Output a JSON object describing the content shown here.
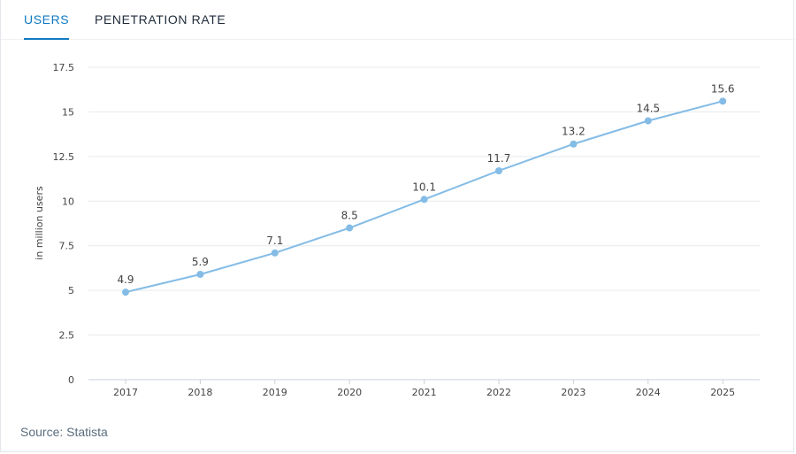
{
  "tabs": [
    {
      "label": "USERS",
      "active": true
    },
    {
      "label": "PENETRATION RATE",
      "active": false
    }
  ],
  "source": "Source: Statista",
  "colors": {
    "accent": "#0f7ac3",
    "series": "#84bce6",
    "grid": "#e6e9ec",
    "text": "#444444"
  },
  "chart_data": {
    "type": "line",
    "title": "",
    "xlabel": "",
    "ylabel": "in million users",
    "x": [
      "2017",
      "2018",
      "2019",
      "2020",
      "2021",
      "2022",
      "2023",
      "2024",
      "2025"
    ],
    "series": [
      {
        "values": [
          4.9,
          5.9,
          7.1,
          8.5,
          10.1,
          11.7,
          13.2,
          14.5,
          15.6
        ]
      }
    ],
    "ylim": [
      0,
      17.5
    ],
    "yticks": [
      0,
      2.5,
      5,
      7.5,
      10,
      12.5,
      15,
      17.5
    ],
    "ytick_labels": [
      "0",
      "2.5",
      "5",
      "7.5",
      "10",
      "12.5",
      "15",
      "17.5"
    ],
    "grid": true,
    "data_labels": true,
    "legend": "none"
  }
}
